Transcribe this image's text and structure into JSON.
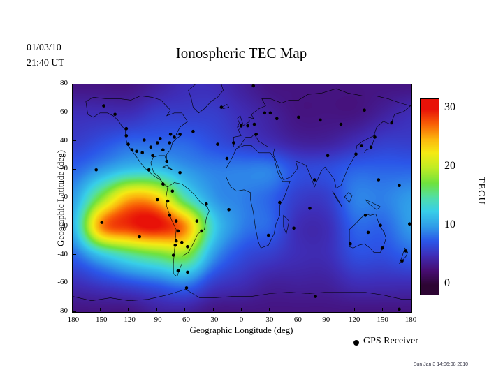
{
  "header": {
    "date_line1": "01/03/10",
    "date_line2": "21:40 UT",
    "title": "Ionospheric TEC Map"
  },
  "axes": {
    "xlabel": "Geographic Longitude (deg)",
    "ylabel": "Geographic Latitude (deg)",
    "xticks": [
      -180,
      -150,
      -120,
      -90,
      -60,
      -30,
      0,
      30,
      60,
      90,
      120,
      150,
      180
    ],
    "yticks": [
      80,
      60,
      40,
      20,
      0,
      -20,
      -40,
      -60,
      -80
    ]
  },
  "colorbar": {
    "unit": "TECU",
    "ticks": [
      30,
      20,
      10,
      0
    ],
    "min": 0,
    "max": 30
  },
  "legend": {
    "label": "GPS Receiver"
  },
  "footer": {
    "timestamp": "Sun Jan 3 14:06:08 2010"
  },
  "chart_data": {
    "type": "heatmap",
    "title": "Ionospheric TEC Map",
    "xlabel": "Geographic Longitude (deg)",
    "ylabel": "Geographic Latitude (deg)",
    "xlim": [
      -180,
      180
    ],
    "ylim": [
      -80,
      80
    ],
    "zlim": [
      0,
      30
    ],
    "colorbar_label": "TECU",
    "grid_lons": [
      -180,
      -150,
      -120,
      -90,
      -60,
      -30,
      0,
      30,
      60,
      90,
      120,
      150,
      180
    ],
    "grid_lats": [
      80,
      60,
      40,
      20,
      0,
      -20,
      -40,
      -60,
      -80
    ],
    "tec_values": [
      [
        3,
        3,
        3,
        4,
        5,
        5,
        4,
        3,
        3,
        3,
        3,
        3,
        3
      ],
      [
        5,
        5,
        5,
        6,
        6,
        6,
        5,
        4,
        3,
        3,
        3,
        4,
        5
      ],
      [
        6,
        7,
        8,
        8,
        8,
        7,
        6,
        5,
        4,
        4,
        5,
        6,
        6
      ],
      [
        8,
        10,
        12,
        12,
        10,
        9,
        9,
        9,
        7,
        7,
        8,
        8,
        8
      ],
      [
        10,
        18,
        25,
        24,
        15,
        10,
        9,
        8,
        6,
        6,
        9,
        9,
        10
      ],
      [
        11,
        26,
        29,
        30,
        26,
        13,
        9,
        8,
        5,
        5,
        8,
        8,
        10
      ],
      [
        8,
        12,
        15,
        17,
        18,
        10,
        7,
        6,
        5,
        5,
        7,
        7,
        8
      ],
      [
        5,
        6,
        7,
        8,
        9,
        6,
        5,
        4,
        4,
        4,
        5,
        5,
        5
      ],
      [
        3,
        3,
        3,
        4,
        4,
        3,
        3,
        3,
        3,
        3,
        3,
        3,
        3
      ]
    ],
    "colormap": [
      [
        0.0,
        "#2d0533"
      ],
      [
        0.08,
        "#470d72"
      ],
      [
        0.17,
        "#3e2eb8"
      ],
      [
        0.25,
        "#2b55e8"
      ],
      [
        0.33,
        "#2f9ae8"
      ],
      [
        0.42,
        "#38cfe8"
      ],
      [
        0.5,
        "#52dfa6"
      ],
      [
        0.58,
        "#6fe23e"
      ],
      [
        0.67,
        "#c2ec24"
      ],
      [
        0.75,
        "#f5ea14"
      ],
      [
        0.83,
        "#fcb60e"
      ],
      [
        0.92,
        "#f85c06"
      ],
      [
        1.0,
        "#e81208"
      ]
    ],
    "gps_receivers": [
      [
        -62,
        82
      ],
      [
        12,
        79
      ],
      [
        -147,
        65
      ],
      [
        -135,
        59
      ],
      [
        -123,
        49
      ],
      [
        -123,
        44
      ],
      [
        -121,
        38
      ],
      [
        -117,
        34
      ],
      [
        -112,
        33
      ],
      [
        -104,
        41
      ],
      [
        -106,
        32
      ],
      [
        -97,
        36
      ],
      [
        -95,
        30
      ],
      [
        -90,
        39
      ],
      [
        -87,
        42
      ],
      [
        -84,
        34
      ],
      [
        -80,
        26
      ],
      [
        -77,
        39
      ],
      [
        -72,
        43
      ],
      [
        -66,
        45
      ],
      [
        -76,
        45
      ],
      [
        -52,
        47
      ],
      [
        -99,
        20
      ],
      [
        -84,
        10
      ],
      [
        -66,
        18
      ],
      [
        -74,
        5
      ],
      [
        -79,
        -2
      ],
      [
        -90,
        -1
      ],
      [
        -77,
        -12
      ],
      [
        -70,
        -16
      ],
      [
        -68,
        -23
      ],
      [
        -70,
        -30
      ],
      [
        -71,
        -33
      ],
      [
        -73,
        -40
      ],
      [
        -68,
        -51
      ],
      [
        -58,
        -34
      ],
      [
        -64,
        -31
      ],
      [
        -48,
        -16
      ],
      [
        -43,
        -23
      ],
      [
        -38,
        -4
      ],
      [
        -109,
        -27
      ],
      [
        -58,
        -52
      ],
      [
        -22,
        64
      ],
      [
        -26,
        38
      ],
      [
        -16,
        28
      ],
      [
        -14,
        -8
      ],
      [
        -9,
        39
      ],
      [
        -1,
        51
      ],
      [
        6,
        51
      ],
      [
        13,
        52
      ],
      [
        15,
        45
      ],
      [
        24,
        60
      ],
      [
        30,
        60
      ],
      [
        37,
        56
      ],
      [
        40,
        -3
      ],
      [
        28,
        -26
      ],
      [
        55,
        -21
      ],
      [
        60,
        57
      ],
      [
        83,
        55
      ],
      [
        105,
        52
      ],
      [
        130,
        62
      ],
      [
        159,
        53
      ],
      [
        91,
        30
      ],
      [
        77,
        13
      ],
      [
        72,
        -7
      ],
      [
        121,
        31
      ],
      [
        127,
        37
      ],
      [
        137,
        36
      ],
      [
        141,
        43
      ],
      [
        145,
        13
      ],
      [
        167,
        9
      ],
      [
        178,
        -18
      ],
      [
        -149,
        -17
      ],
      [
        -155,
        20
      ],
      [
        115,
        -32
      ],
      [
        134,
        -24
      ],
      [
        131,
        -12
      ],
      [
        147,
        -19
      ],
      [
        149,
        -35
      ],
      [
        174,
        -37
      ],
      [
        170,
        -44
      ],
      [
        167,
        -78
      ],
      [
        78,
        -69
      ],
      [
        -59,
        -63
      ]
    ]
  }
}
